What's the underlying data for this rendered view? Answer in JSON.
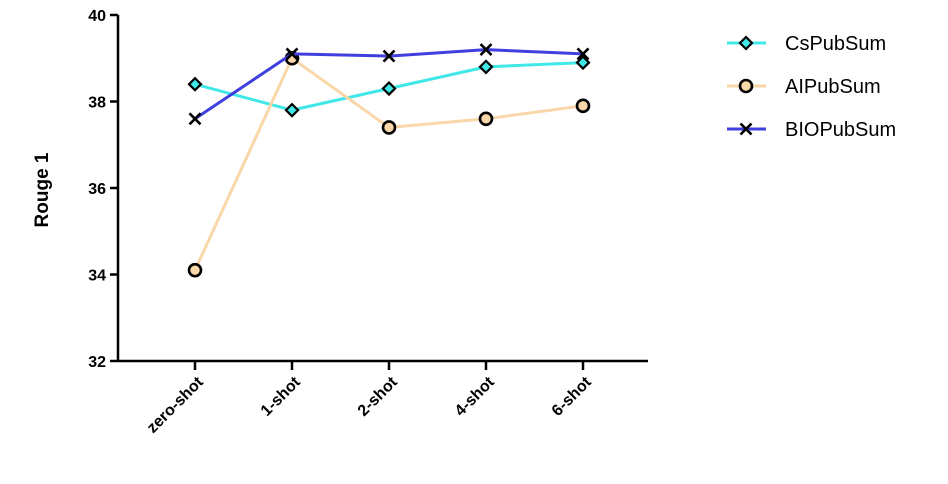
{
  "chart_data": {
    "type": "line",
    "title": "",
    "xlabel": "",
    "ylabel": "Rouge 1",
    "categories": [
      "zero-shot",
      "1-shot",
      "2-shot",
      "4-shot",
      "6-shot"
    ],
    "ylim": [
      32,
      40
    ],
    "yticks": [
      32,
      34,
      36,
      38,
      40
    ],
    "grid": false,
    "legend_position": "right",
    "series": [
      {
        "name": "CsPubSum",
        "values": [
          38.4,
          37.8,
          38.3,
          38.8,
          38.9
        ],
        "color": "#40E8E8",
        "marker": "diamond"
      },
      {
        "name": "AIPubSum",
        "values": [
          34.1,
          39.0,
          37.4,
          37.6,
          37.9
        ],
        "color": "#FAD7A8",
        "marker": "circle"
      },
      {
        "name": "BIOPubSum",
        "values": [
          37.6,
          39.1,
          39.05,
          39.2,
          39.1
        ],
        "color": "#3F3FE0",
        "marker": "x"
      }
    ]
  }
}
